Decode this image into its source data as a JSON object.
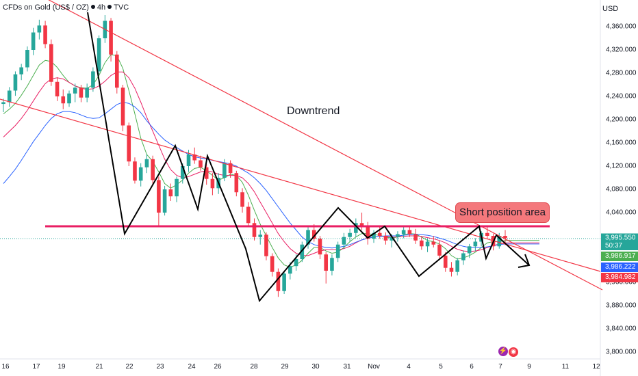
{
  "header": {
    "symbol": "CFDs on Gold (US$ / OZ)",
    "interval": "4h",
    "source": "TVC",
    "currency": "USD"
  },
  "colors": {
    "up": "#26a69a",
    "down": "#f23645",
    "ma_fast": "#4caf50",
    "ma_mid": "#e91e63",
    "ma_slow": "#2962ff",
    "trendline": "#f23645",
    "support": "#e91e63",
    "pattern": "#000000",
    "box_fill": "#f4787c"
  },
  "chart_data": {
    "type": "candlestick",
    "title": "CFDs on Gold (US$ / OZ) · 4h · TVC",
    "ylabel": "USD",
    "ylim": [
      3780,
      4385
    ],
    "y_ticks": [
      "4,360.000",
      "4,320.000",
      "4,280.000",
      "4,240.000",
      "4,200.000",
      "4,160.000",
      "4,120.000",
      "4,080.000",
      "4,040.000",
      "3,995.550",
      "3,960.000",
      "3,920.000",
      "3,880.000",
      "3,840.000",
      "3,800.000"
    ],
    "x_ticks": [
      "16",
      "17",
      "19",
      "21",
      "22",
      "23",
      "24",
      "26",
      "28",
      "29",
      "30",
      "31",
      "Nov",
      "4",
      "5",
      "6",
      "7",
      "9",
      "11",
      "12"
    ],
    "series": [
      {
        "name": "",
        "type": "candlestick",
        "ohlc": [
          [
            4227,
            4236,
            4213,
            4230
          ],
          [
            4230,
            4256,
            4222,
            4250
          ],
          [
            4250,
            4283,
            4241,
            4278
          ],
          [
            4278,
            4296,
            4268,
            4290
          ],
          [
            4290,
            4326,
            4283,
            4320
          ],
          [
            4320,
            4358,
            4311,
            4350
          ],
          [
            4350,
            4372,
            4338,
            4362
          ],
          [
            4362,
            4370,
            4323,
            4330
          ],
          [
            4330,
            4338,
            4258,
            4265
          ],
          [
            4265,
            4273,
            4232,
            4240
          ],
          [
            4240,
            4252,
            4218,
            4228
          ],
          [
            4228,
            4250,
            4222,
            4245
          ],
          [
            4245,
            4262,
            4230,
            4255
          ],
          [
            4255,
            4260,
            4230,
            4238
          ],
          [
            4238,
            4262,
            4230,
            4255
          ],
          [
            4255,
            4290,
            4248,
            4283
          ],
          [
            4283,
            4345,
            4278,
            4340
          ],
          [
            4340,
            4380,
            4332,
            4370
          ],
          [
            4370,
            4375,
            4300,
            4312
          ],
          [
            4312,
            4318,
            4245,
            4255
          ],
          [
            4255,
            4260,
            4180,
            4190
          ],
          [
            4190,
            4195,
            4120,
            4128
          ],
          [
            4128,
            4135,
            4090,
            4095
          ],
          [
            4095,
            4125,
            4085,
            4118
          ],
          [
            4118,
            4140,
            4108,
            4132
          ],
          [
            4132,
            4138,
            4088,
            4096
          ],
          [
            4096,
            4102,
            4015,
            4040
          ],
          [
            4040,
            4086,
            4035,
            4080
          ],
          [
            4080,
            4090,
            4060,
            4068
          ],
          [
            4068,
            4102,
            4058,
            4098
          ],
          [
            4098,
            4125,
            4090,
            4120
          ],
          [
            4120,
            4148,
            4110,
            4140
          ],
          [
            4140,
            4152,
            4124,
            4130
          ],
          [
            4130,
            4138,
            4112,
            4118
          ],
          [
            4118,
            4124,
            4088,
            4098
          ],
          [
            4098,
            4108,
            4070,
            4082
          ],
          [
            4082,
            4108,
            4072,
            4100
          ],
          [
            4100,
            4132,
            4094,
            4125
          ],
          [
            4125,
            4130,
            4100,
            4108
          ],
          [
            4108,
            4112,
            4068,
            4075
          ],
          [
            4075,
            4082,
            4040,
            4050
          ],
          [
            4050,
            4058,
            4015,
            4022
          ],
          [
            4022,
            4030,
            3992,
            3998
          ],
          [
            3998,
            4010,
            3985,
            4002
          ],
          [
            4002,
            4006,
            3958,
            3965
          ],
          [
            3965,
            3970,
            3930,
            3938
          ],
          [
            3938,
            3944,
            3895,
            3905
          ],
          [
            3905,
            3940,
            3900,
            3935
          ],
          [
            3935,
            3955,
            3925,
            3948
          ],
          [
            3948,
            3968,
            3940,
            3960
          ],
          [
            3960,
            3990,
            3955,
            3985
          ],
          [
            3985,
            4015,
            3978,
            4010
          ],
          [
            4010,
            4020,
            3990,
            3995
          ],
          [
            3995,
            4000,
            3960,
            3968
          ],
          [
            3968,
            3972,
            3918,
            3940
          ],
          [
            3940,
            3968,
            3932,
            3962
          ],
          [
            3962,
            3990,
            3955,
            3985
          ],
          [
            3985,
            4005,
            3978,
            3998
          ],
          [
            3998,
            4012,
            3990,
            4005
          ],
          [
            4005,
            4030,
            3998,
            4022
          ],
          [
            4022,
            4040,
            4010,
            4018
          ],
          [
            4018,
            4024,
            3985,
            3995
          ],
          [
            3995,
            4010,
            3988,
            4005
          ],
          [
            4005,
            4015,
            3995,
            4000
          ],
          [
            4000,
            4006,
            3985,
            3992
          ],
          [
            3992,
            4003,
            3980,
            3998
          ],
          [
            3998,
            4008,
            3990,
            4003
          ],
          [
            4003,
            4016,
            3996,
            4010
          ],
          [
            4010,
            4018,
            3998,
            4003
          ],
          [
            4003,
            4012,
            3986,
            3992
          ],
          [
            3992,
            3998,
            3976,
            3982
          ],
          [
            3982,
            3995,
            3972,
            3990
          ],
          [
            3990,
            4000,
            3980,
            3985
          ],
          [
            3985,
            3992,
            3960,
            3966
          ],
          [
            3966,
            3972,
            3938,
            3945
          ],
          [
            3945,
            3955,
            3930,
            3938
          ],
          [
            3938,
            3962,
            3932,
            3958
          ],
          [
            3958,
            3975,
            3950,
            3970
          ],
          [
            3970,
            3986,
            3962,
            3982
          ],
          [
            3982,
            3996,
            3974,
            3990
          ],
          [
            3990,
            4008,
            3982,
            4005
          ],
          [
            4005,
            4018,
            3995,
            4000
          ],
          [
            4000,
            4004,
            3975,
            3982
          ],
          [
            3982,
            4005,
            3978,
            4000
          ],
          [
            4000,
            4010,
            3984,
            3996
          ]
        ]
      },
      {
        "name": "",
        "type": "line",
        "values": [
          4210,
          4218,
          4228,
          4242,
          4258,
          4276,
          4294,
          4302,
          4300,
          4290,
          4276,
          4264,
          4258,
          4255,
          4254,
          4260,
          4276,
          4298,
          4312,
          4310,
          4288,
          4250,
          4210,
          4168,
          4140,
          4128,
          4110,
          4090,
          4082,
          4088,
          4096,
          4108,
          4116,
          4118,
          4112,
          4104,
          4096,
          4100,
          4106,
          4104,
          4092,
          4070,
          4044,
          4020,
          4000,
          3980,
          3962,
          3950,
          3946,
          3950,
          3958,
          3970,
          3980,
          3980,
          3974,
          3970,
          3972,
          3980,
          3990,
          3998,
          4004,
          4004,
          4002,
          4001,
          3998,
          3996,
          3998,
          4002,
          4004,
          4003,
          3998,
          3992,
          3990,
          3986,
          3978,
          3966,
          3960,
          3962,
          3966,
          3972,
          3980,
          3988,
          3990,
          3990,
          3992
        ]
      },
      {
        "name": "",
        "type": "line",
        "values": [
          4170,
          4180,
          4190,
          4202,
          4216,
          4232,
          4248,
          4262,
          4270,
          4272,
          4270,
          4264,
          4258,
          4254,
          4252,
          4253,
          4258,
          4266,
          4276,
          4282,
          4282,
          4272,
          4254,
          4230,
          4204,
          4180,
          4156,
          4132,
          4114,
          4104,
          4100,
          4102,
          4106,
          4110,
          4112,
          4110,
          4106,
          4104,
          4104,
          4104,
          4100,
          4090,
          4076,
          4058,
          4040,
          4022,
          4004,
          3990,
          3978,
          3970,
          3966,
          3966,
          3970,
          3974,
          3976,
          3976,
          3976,
          3978,
          3982,
          3988,
          3993,
          3996,
          3998,
          3999,
          3999,
          3998,
          3998,
          3999,
          4000,
          4000,
          3999,
          3997,
          3995,
          3992,
          3988,
          3982,
          3977,
          3974,
          3973,
          3974,
          3976,
          3980,
          3983,
          3986,
          3988
        ]
      },
      {
        "name": "",
        "type": "line",
        "values": [
          4090,
          4102,
          4115,
          4130,
          4146,
          4162,
          4176,
          4190,
          4202,
          4210,
          4214,
          4214,
          4212,
          4208,
          4204,
          4202,
          4203,
          4210,
          4218,
          4226,
          4230,
          4228,
          4222,
          4212,
          4198,
          4186,
          4175,
          4165,
          4158,
          4152,
          4146,
          4140,
          4136,
          4134,
          4132,
          4130,
          4128,
          4126,
          4124,
          4120,
          4114,
          4108,
          4100,
          4090,
          4078,
          4064,
          4050,
          4036,
          4022,
          4010,
          3998,
          3990,
          3985,
          3982,
          3980,
          3979,
          3980,
          3982,
          3985,
          3989,
          3993,
          3996,
          3998,
          3999,
          4000,
          4000,
          4000,
          4001,
          4002,
          4003,
          4002,
          4001,
          3999,
          3996,
          3993,
          3989,
          3985,
          3982,
          3980,
          3980,
          3980,
          3981,
          3983,
          3985,
          3986
        ]
      }
    ],
    "price_labels": [
      "3,995.550",
      "50:37",
      "3,986.917",
      "3,986.222",
      "3,984.982"
    ],
    "annotations": [
      "Downtrend",
      "Short position area"
    ],
    "legend": "none",
    "grid": false
  }
}
